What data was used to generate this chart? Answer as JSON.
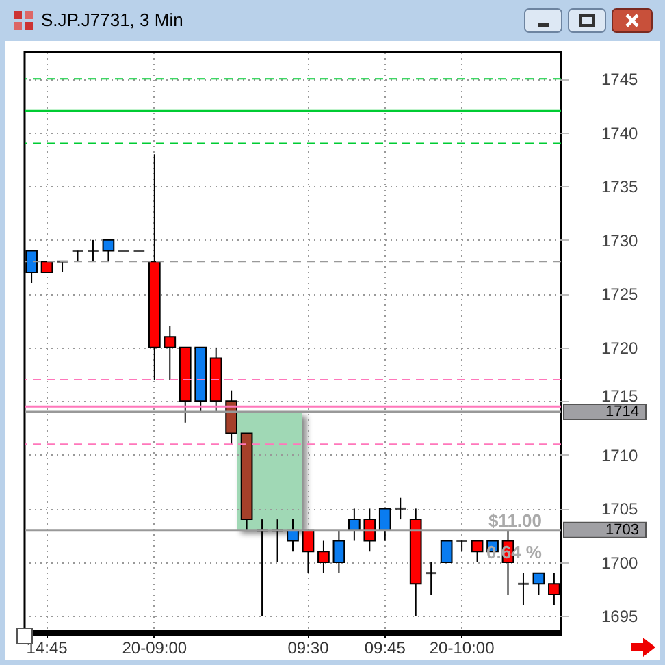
{
  "chart_data": {
    "type": "candlestick",
    "title": "S.JP.J7731, 3 Min",
    "categories": [
      null,
      "14:45",
      null,
      null,
      null,
      null,
      null,
      null,
      "20-09:00",
      null,
      null,
      null,
      null,
      null,
      null,
      null,
      null,
      null,
      "09:30",
      null,
      null,
      null,
      null,
      "09:45",
      null,
      null,
      null,
      null,
      "20-10:00",
      null,
      null,
      null,
      null,
      null,
      null
    ],
    "ohlc": [
      [
        1727,
        1729,
        1726,
        1729
      ],
      [
        1728,
        1728,
        1727,
        1727
      ],
      [
        1728,
        1728,
        1727,
        1728
      ],
      [
        1729,
        1729,
        1728,
        1729
      ],
      [
        1729,
        1730,
        1728,
        1729
      ],
      [
        1729,
        1730,
        1728,
        1730
      ],
      [
        1729,
        1729,
        1729,
        1729
      ],
      [
        1729,
        1729,
        1729,
        1729
      ],
      [
        1728,
        1738,
        1717,
        1720
      ],
      [
        1721,
        1722,
        1717,
        1720
      ],
      [
        1720,
        1720,
        1713,
        1715
      ],
      [
        1715,
        1720,
        1714,
        1720
      ],
      [
        1719,
        1720,
        1714,
        1715
      ],
      [
        1715,
        1716,
        1711,
        1712
      ],
      [
        1712,
        1712,
        1703,
        1704
      ],
      [
        1703,
        1704,
        1695,
        1703
      ],
      [
        1703,
        1704,
        1700,
        1703
      ],
      [
        1702,
        1704,
        1701,
        1703
      ],
      [
        1703,
        1703,
        1699,
        1701
      ],
      [
        1701,
        1702,
        1699,
        1700
      ],
      [
        1700,
        1703,
        1699,
        1702
      ],
      [
        1703,
        1705,
        1702,
        1704
      ],
      [
        1704,
        1705,
        1701,
        1702
      ],
      [
        1703,
        1705,
        1702,
        1705
      ],
      [
        1705,
        1706,
        1704,
        1705
      ],
      [
        1704,
        1705,
        1695,
        1698
      ],
      [
        1699,
        1700,
        1697,
        1699
      ],
      [
        1700,
        1702,
        1700,
        1702
      ],
      [
        1702,
        1702,
        1701,
        1702
      ],
      [
        1702,
        1702,
        1700,
        1701
      ],
      [
        1701,
        1702,
        1701,
        1702
      ],
      [
        1702,
        1703,
        1697,
        1700
      ],
      [
        1698,
        1699,
        1696,
        1698
      ],
      [
        1698,
        1699,
        1697,
        1699
      ],
      [
        1698,
        1699,
        1696,
        1697
      ]
    ],
    "colors": [
      "#0a7cf0",
      "#ff0000",
      "#000000",
      "#000000",
      "#000000",
      "#0a7cf0",
      "#000000",
      "#000000",
      "#ff0000",
      "#ff0000",
      "#ff0000",
      "#0a7cf0",
      "#ff0000",
      "#a5402a",
      "#a5402a",
      "#000000",
      "#000000",
      "#0a7cf0",
      "#ff0000",
      "#ff0000",
      "#0a7cf0",
      "#0a7cf0",
      "#ff0000",
      "#0a7cf0",
      "#000000",
      "#ff0000",
      "#000000",
      "#0a7cf0",
      "#000000",
      "#ff0000",
      "#0a7cf0",
      "#ff0000",
      "#000000",
      "#0a7cf0",
      "#ff0000"
    ],
    "ylim": [
      1693.5,
      1747.5
    ],
    "yticks": [
      1695,
      1700,
      1705,
      1710,
      1715,
      1720,
      1725,
      1730,
      1735,
      1740,
      1745
    ],
    "grid": true,
    "ref_lines": [
      {
        "axis": "y",
        "value": 1745,
        "color": "#00cc33",
        "line_style": "dashed"
      },
      {
        "axis": "y",
        "value": 1742,
        "color": "#00cc33",
        "line_style": "solid"
      },
      {
        "axis": "y",
        "value": 1739,
        "color": "#00cc33",
        "line_style": "dashed"
      },
      {
        "axis": "y",
        "value": 1728,
        "color": "#999999",
        "line_style": "dashed"
      },
      {
        "axis": "y",
        "value": 1717,
        "color": "#ff77bb",
        "line_style": "dashed"
      },
      {
        "axis": "y",
        "value": 1714.5,
        "color": "#ff77bb",
        "line_style": "solid"
      },
      {
        "axis": "y",
        "value": 1711,
        "color": "#ff77bb",
        "line_style": "dashed"
      },
      {
        "axis": "y",
        "value": 1714,
        "label": "1714",
        "color": "#999999",
        "line_style": "solid"
      },
      {
        "axis": "y",
        "value": 1703,
        "label": "1703",
        "color": "#999999",
        "line_style": "solid"
      }
    ],
    "annotations": [
      "$11.00",
      "0.64 %"
    ]
  }
}
